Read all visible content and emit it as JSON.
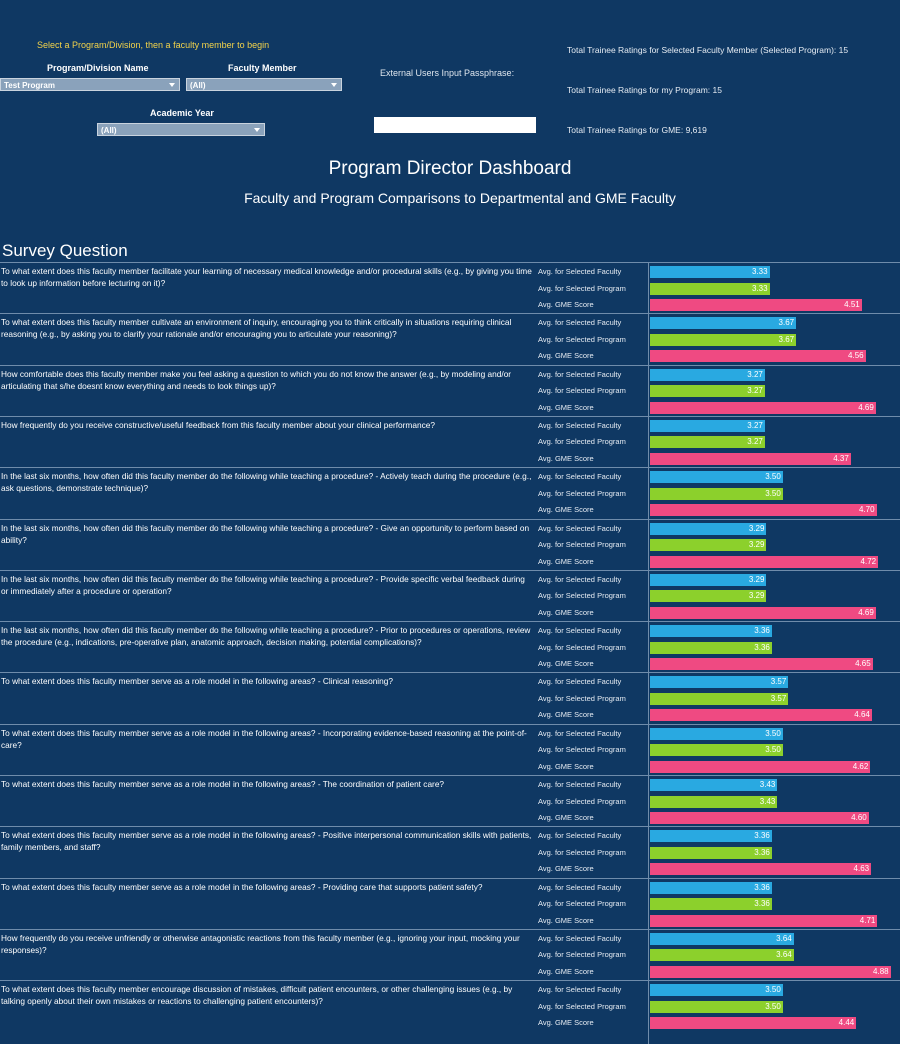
{
  "header": {
    "instruction": "Select a Program/Division, then a faculty member to begin",
    "program_label": "Program/Division Name",
    "program_value": "Test Program",
    "faculty_label": "Faculty Member",
    "faculty_value": "(All)",
    "year_label": "Academic Year",
    "year_value": "(All)",
    "passphrase_label": "External Users Input Passphrase:",
    "stats": [
      "Total Trainee Ratings for Selected Faculty Member (Selected Program): 15",
      "Total Trainee Ratings for my Program: 15",
      "Total Trainee Ratings for GME: 9,619"
    ]
  },
  "title": "Program Director Dashboard",
  "subtitle": "Faculty and Program Comparisons to Departmental and GME Faculty",
  "section": "Survey Question",
  "measures": [
    "Avg. for Selected Faculty",
    "Avg. for Selected Program",
    "Avg. GME Score"
  ],
  "colors": [
    "#29a9e1",
    "#8cd02c",
    "#ef4a82"
  ],
  "xlim": [
    1.8,
    5
  ],
  "questions": [
    {
      "text": "To what extent does this faculty member facilitate your learning of necessary medical knowledge and/or procedural skills (e.g., by giving you time to look up information before lecturing on it)?",
      "values": [
        3.33,
        3.33,
        4.51
      ],
      "value_labels": [
        "3.33",
        "3.33",
        "4.51"
      ]
    },
    {
      "text": "To what extent does this faculty member cultivate an environment of inquiry, encouraging you to think critically in situations requiring clinical reasoning (e.g., by asking you to clarify your rationale and/or encouraging you to articulate your reasoning)?",
      "values": [
        3.67,
        3.67,
        4.56
      ],
      "value_labels": [
        "3.67",
        "3.67",
        "4.56"
      ]
    },
    {
      "text": "How comfortable does this faculty member make you feel asking a question to which you do not know the answer (e.g., by modeling and/or articulating that s/he doesnt know everything and needs to look things up)?",
      "values": [
        3.27,
        3.27,
        4.69
      ],
      "value_labels": [
        "3.27",
        "3.27",
        "4.69"
      ]
    },
    {
      "text": "How frequently do you receive constructive/useful feedback from this faculty member about your clinical performance?",
      "values": [
        3.27,
        3.27,
        4.37
      ],
      "value_labels": [
        "3.27",
        "3.27",
        "4.37"
      ]
    },
    {
      "text": "In the last six months, how often did this faculty member do the following while teaching a procedure? - Actively teach during the procedure (e.g., ask questions, demonstrate technique)?",
      "values": [
        3.5,
        3.5,
        4.7
      ],
      "value_labels": [
        "3.50",
        "3.50",
        "4.70"
      ]
    },
    {
      "text": "In the last six months, how often did this faculty member do the following while teaching a procedure? - Give an opportunity to perform based on ability?",
      "values": [
        3.29,
        3.29,
        4.72
      ],
      "value_labels": [
        "3.29",
        "3.29",
        "4.72"
      ]
    },
    {
      "text": "In the last six months, how often did this faculty member do the following while teaching a procedure? - Provide specific verbal feedback during or immediately after a procedure or operation?",
      "values": [
        3.29,
        3.29,
        4.69
      ],
      "value_labels": [
        "3.29",
        "3.29",
        "4.69"
      ]
    },
    {
      "text": "In the last six months, how often did this faculty member do the following while teaching a procedure? - Prior to procedures or operations, review the procedure (e.g., indications, pre-operative plan, anatomic approach, decision making, potential complications)?",
      "values": [
        3.36,
        3.36,
        4.65
      ],
      "value_labels": [
        "3.36",
        "3.36",
        "4.65"
      ]
    },
    {
      "text": "To what extent does this faculty member serve as a role model in the following areas? - Clinical reasoning?",
      "values": [
        3.57,
        3.57,
        4.64
      ],
      "value_labels": [
        "3.57",
        "3.57",
        "4.64"
      ]
    },
    {
      "text": "To what extent does this faculty member serve as a role model in the following areas? - Incorporating evidence-based reasoning at the point-of-care?",
      "values": [
        3.5,
        3.5,
        4.62
      ],
      "value_labels": [
        "3.50",
        "3.50",
        "4.62"
      ]
    },
    {
      "text": "To what extent does this faculty member serve as a role model in the following areas? - The coordination of patient care?",
      "values": [
        3.43,
        3.43,
        4.6
      ],
      "value_labels": [
        "3.43",
        "3.43",
        "4.60"
      ]
    },
    {
      "text": "To what extent does this faculty member serve as a role model in the following areas? - Positive interpersonal communication skills with patients, family members, and staff?",
      "values": [
        3.36,
        3.36,
        4.63
      ],
      "value_labels": [
        "3.36",
        "3.36",
        "4.63"
      ]
    },
    {
      "text": "To what extent does this faculty member serve as a role model in the following areas? - Providing care that supports patient safety?",
      "values": [
        3.36,
        3.36,
        4.71
      ],
      "value_labels": [
        "3.36",
        "3.36",
        "4.71"
      ]
    },
    {
      "text": "How frequently do you receive unfriendly or otherwise antagonistic reactions from this faculty member (e.g., ignoring your input, mocking your responses)?",
      "values": [
        3.64,
        3.64,
        4.88
      ],
      "value_labels": [
        "3.64",
        "3.64",
        "4.88"
      ]
    },
    {
      "text": "To what extent does this faculty member encourage discussion of mistakes, difficult patient encounters, or other challenging issues (e.g., by talking openly about their own mistakes or reactions to challenging patient encounters)?",
      "values": [
        3.5,
        3.5,
        4.44
      ],
      "value_labels": [
        "3.50",
        "3.50",
        "4.44"
      ]
    }
  ]
}
